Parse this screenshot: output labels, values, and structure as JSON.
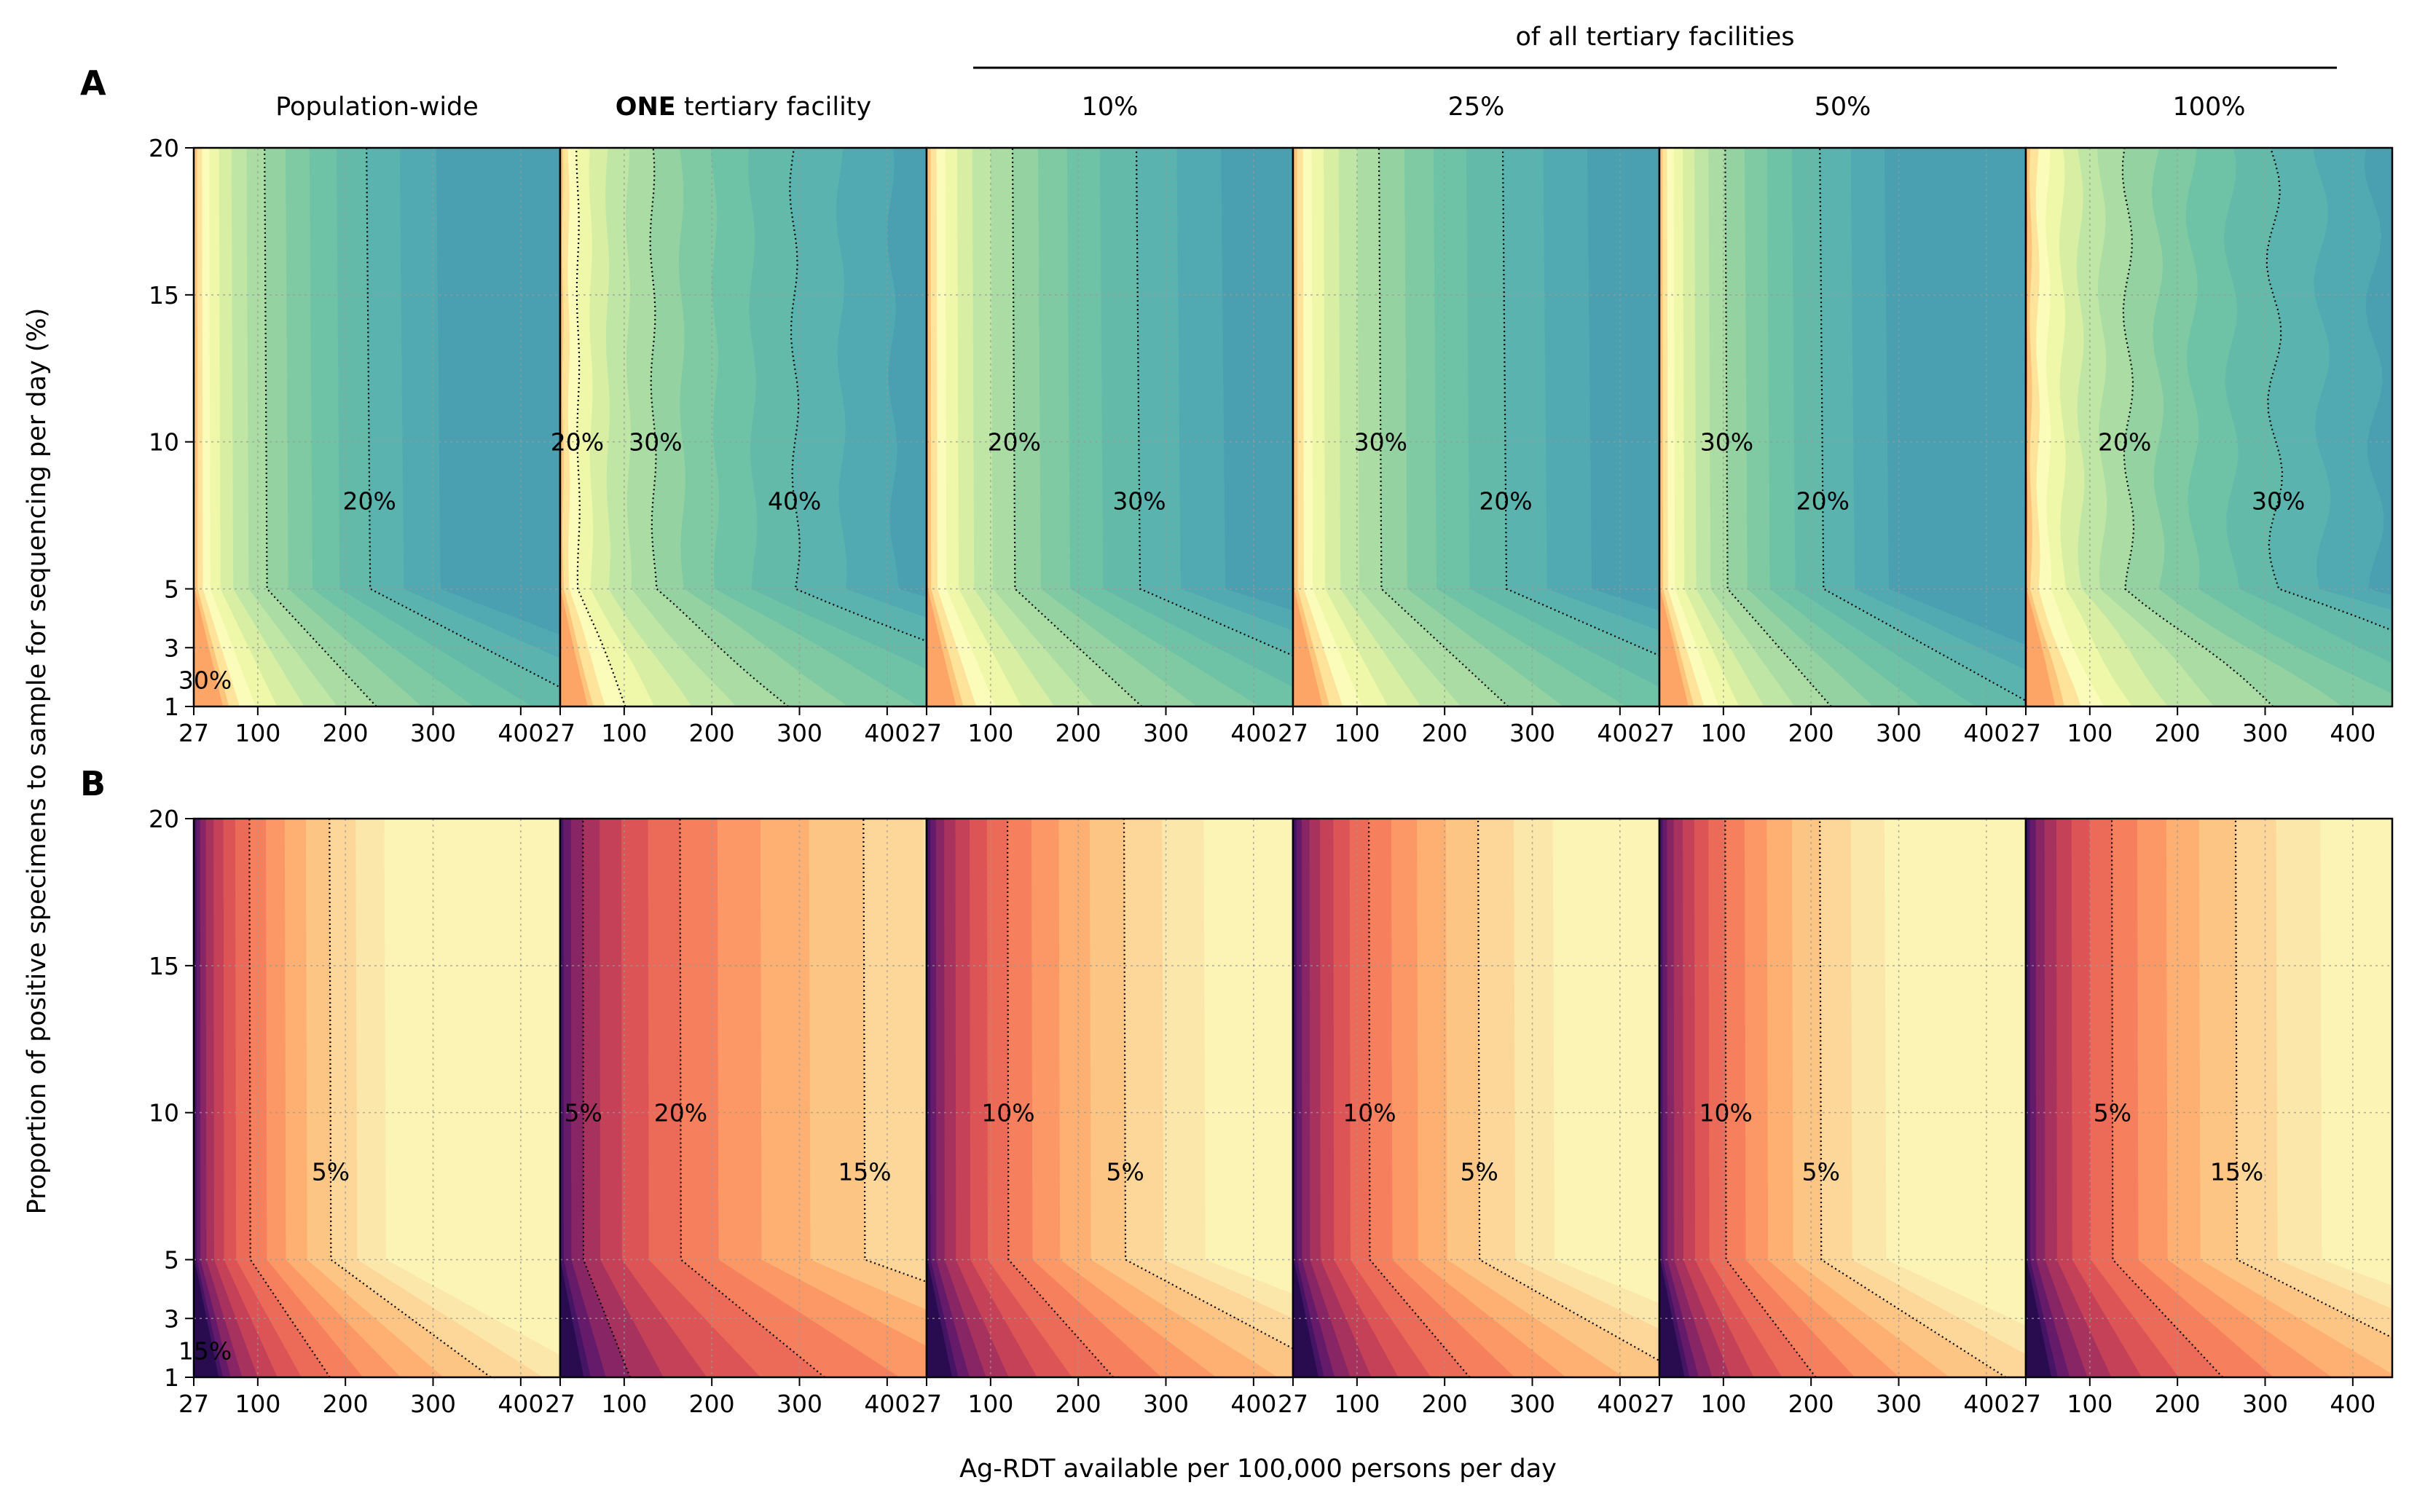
{
  "figure": {
    "panel_letters": [
      "A",
      "B"
    ],
    "group_header": "of all tertiary facilities",
    "column_titles": [
      {
        "bold": "",
        "text": "Population-wide"
      },
      {
        "bold": "ONE",
        "text": " tertiary facility"
      },
      {
        "bold": "",
        "text": "10%"
      },
      {
        "bold": "",
        "text": "25%"
      },
      {
        "bold": "",
        "text": "50%"
      },
      {
        "bold": "",
        "text": "100%"
      }
    ],
    "xlabel": "Ag-RDT available per 100,000 persons per day",
    "ylabel": "Proportion of positive specimens to sample for sequencing per day (%)"
  },
  "chart_data": {
    "type": "heatmap",
    "subtype": "filled-contour small multiples",
    "x_ticks": [
      27,
      100,
      200,
      300,
      400
    ],
    "y_ticks": [
      1,
      3,
      5,
      10,
      15,
      20
    ],
    "xlim": [
      27,
      445
    ],
    "ylim": [
      1,
      20
    ],
    "grid": true,
    "colormaps": {
      "A": "viridis-yellow-green-teal",
      "B": "magma"
    },
    "rows": [
      {
        "panel": "A",
        "colors": [
          "#4a9fb1",
          "#51a9b1",
          "#5ab3ae",
          "#63baa9",
          "#6ec2a5",
          "#7fcaa3",
          "#94d2a2",
          "#aadca4",
          "#c0e6a6",
          "#d8efa3",
          "#eef8a8",
          "#fbfbba",
          "#fde49a",
          "#fdc57c",
          "#fca566"
        ],
        "panels": [
          {
            "column": "Population-wide",
            "contour_labels": [
              "20%",
              "30%"
            ]
          },
          {
            "column": "ONE tertiary facility",
            "contour_labels": [
              "40%",
              "30%",
              "20%"
            ]
          },
          {
            "column": "10%",
            "contour_labels": [
              "30%",
              "20%"
            ]
          },
          {
            "column": "25%",
            "contour_labels": [
              "20%",
              "30%"
            ]
          },
          {
            "column": "50%",
            "contour_labels": [
              "20%",
              "30%"
            ]
          },
          {
            "column": "100%",
            "contour_labels": [
              "30%",
              "20%"
            ]
          }
        ]
      },
      {
        "panel": "B",
        "colors": [
          "#fbf4b5",
          "#fce7aa",
          "#fdd699",
          "#fdc584",
          "#fdb072",
          "#fb9865",
          "#f6805d",
          "#ec6a58",
          "#dc5455",
          "#c54157",
          "#a8325e",
          "#882665",
          "#661b6a",
          "#451465",
          "#280c4f"
        ],
        "panels": [
          {
            "column": "Population-wide",
            "contour_labels": [
              "5%",
              "15%"
            ]
          },
          {
            "column": "ONE tertiary facility",
            "contour_labels": [
              "15%",
              "20%",
              "5%"
            ]
          },
          {
            "column": "10%",
            "contour_labels": [
              "5%",
              "10%"
            ]
          },
          {
            "column": "25%",
            "contour_labels": [
              "5%",
              "10%"
            ]
          },
          {
            "column": "50%",
            "contour_labels": [
              "5%",
              "10%"
            ]
          },
          {
            "column": "100%",
            "contour_labels": [
              "15%",
              "5%"
            ]
          }
        ]
      }
    ]
  }
}
